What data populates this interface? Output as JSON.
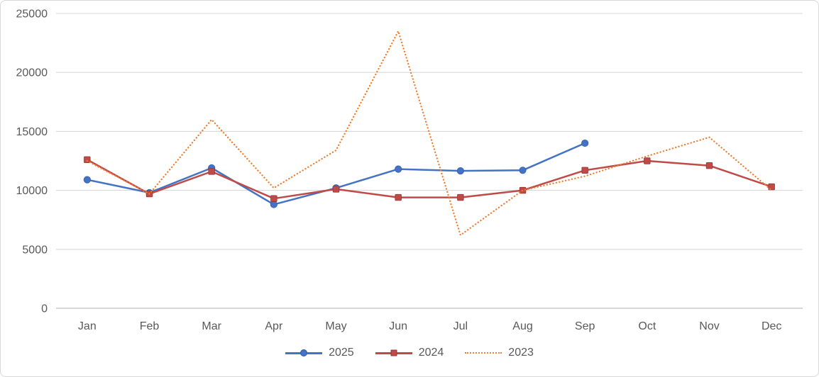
{
  "chart_data": {
    "type": "line",
    "title": "",
    "categories": [
      "Jan",
      "Feb",
      "Mar",
      "Apr",
      "May",
      "Jun",
      "Jul",
      "Aug",
      "Sep",
      "Oct",
      "Nov",
      "Dec"
    ],
    "series": [
      {
        "name": "2025",
        "color": "#4472c4",
        "marker_edge": "#3560a8",
        "marker": "circle",
        "style": "solid",
        "values": [
          10900,
          9800,
          11900,
          8800,
          10200,
          11800,
          11650,
          11700,
          14000,
          null,
          null,
          null
        ]
      },
      {
        "name": "2024",
        "color": "#be4b48",
        "marker_edge": "#943734",
        "marker": "square",
        "style": "solid",
        "values": [
          12600,
          9700,
          11600,
          9300,
          10100,
          9400,
          9400,
          10000,
          11700,
          12500,
          12100,
          10300
        ]
      },
      {
        "name": "2023",
        "color": "#ed7d31",
        "marker_edge": "#ed7d31",
        "marker": "none",
        "style": "dotted",
        "values": [
          12500,
          9700,
          16000,
          10200,
          13400,
          23500,
          6200,
          10000,
          11200,
          12900,
          14500,
          10000
        ]
      }
    ],
    "ylim": [
      0,
      25000
    ],
    "ytick_interval": 5000,
    "ytick_labels": [
      "0",
      "5000",
      "10000",
      "15000",
      "20000",
      "25000"
    ],
    "grid": true,
    "legend_position": "bottom"
  },
  "colors": {
    "background": "#ffffff",
    "frame_border": "#d7d7d7",
    "gridline": "#d9d9d9",
    "axis_line": "#bfbfbf",
    "tick_label": "#595959",
    "legend_label": "#595959"
  }
}
